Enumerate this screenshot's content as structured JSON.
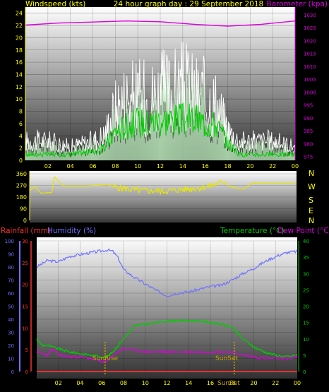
{
  "colors": {
    "background": "#000000",
    "panel_top": "#ffffff",
    "panel_bottom": "#3a3a3a",
    "axis_text": "#ffff00",
    "wind_gust": "#ffffff",
    "wind_avg": "#00cc00",
    "wind_fill": "#b8e6b8",
    "barometer": "#dd00dd",
    "direction": "#e6e600",
    "humidity": "#7070ff",
    "temperature": "#00cc00",
    "dew_point": "#dd00dd",
    "rainfall": "#ff3030",
    "sun_marker": "#c8a000"
  },
  "header": {
    "windspeed_label": "Windspeed (kts)",
    "title": "24 hour graph day : 29 September 2018",
    "barometer_label": "Barometer (kpa)"
  },
  "bottom_header": {
    "rainfall_label": "Rainfall (mm)",
    "humidity_label": "Humidity (%)",
    "temperature_label": "Temperature (°C)",
    "dewpoint_label": "Dew Point (°C)"
  },
  "compass": [
    "N",
    "W",
    "S",
    "E",
    "N"
  ],
  "sun": {
    "sunrise_label": "SunRise",
    "sunset_label": "SunSet",
    "sunrise_hour": 6.3,
    "sunset_hour": 18.2
  },
  "chart_data": [
    {
      "type": "line",
      "name": "wind_barometer",
      "x_ticks": [
        "02",
        "04",
        "06",
        "08",
        "10",
        "12",
        "14",
        "16",
        "18",
        "20",
        "22",
        "00"
      ],
      "left_ticks": [
        "0",
        "2",
        "4",
        "6",
        "8",
        "10",
        "12",
        "14",
        "16",
        "18",
        "20",
        "22",
        "24"
      ],
      "right_ticks": [
        "975",
        "980",
        "985",
        "990",
        "995",
        "1000",
        "1005",
        "1010",
        "1015",
        "1020",
        "1025",
        "1030"
      ],
      "ylim_left": [
        0,
        25
      ],
      "ylim_right": [
        973.5,
        1033
      ],
      "xlim": [
        0,
        24
      ],
      "grid": true,
      "series": [
        {
          "key": "gust",
          "values": [
            [
              0,
              3
            ],
            [
              2,
              3
            ],
            [
              4,
              2
            ],
            [
              6,
              3
            ],
            [
              7,
              4
            ],
            [
              8,
              9
            ],
            [
              9,
              11
            ],
            [
              10,
              11
            ],
            [
              11,
              11
            ],
            [
              12,
              12
            ],
            [
              13,
              12
            ],
            [
              14,
              13
            ],
            [
              15,
              12
            ],
            [
              16,
              11
            ],
            [
              17,
              10
            ],
            [
              18,
              5
            ],
            [
              19,
              3
            ],
            [
              20,
              3
            ],
            [
              22,
              3
            ],
            [
              24,
              2
            ]
          ]
        },
        {
          "key": "average",
          "values": [
            [
              0,
              1
            ],
            [
              2,
              1
            ],
            [
              4,
              1
            ],
            [
              6,
              1.5
            ],
            [
              7,
              2
            ],
            [
              8,
              5
            ],
            [
              9,
              6
            ],
            [
              10,
              6.5
            ],
            [
              11,
              6.5
            ],
            [
              12,
              7
            ],
            [
              13,
              7
            ],
            [
              14,
              7
            ],
            [
              15,
              7
            ],
            [
              16,
              6.5
            ],
            [
              17,
              6
            ],
            [
              18,
              3
            ],
            [
              19,
              1
            ],
            [
              20,
              1
            ],
            [
              22,
              1
            ],
            [
              24,
              1
            ]
          ]
        },
        {
          "key": "barometer",
          "values": [
            [
              0,
              1026
            ],
            [
              3,
              1026.8
            ],
            [
              6,
              1027.2
            ],
            [
              9,
              1027.6
            ],
            [
              12,
              1027.3
            ],
            [
              15,
              1026.3
            ],
            [
              18,
              1025.6
            ],
            [
              21,
              1026.3
            ],
            [
              24,
              1027.6
            ]
          ]
        }
      ]
    },
    {
      "type": "line",
      "name": "wind_direction",
      "y_ticks": [
        "0",
        "90",
        "180",
        "270",
        "360"
      ],
      "ylim": [
        0,
        360
      ],
      "xlim": [
        0,
        24
      ],
      "series": [
        {
          "key": "direction",
          "values": [
            [
              0,
              230
            ],
            [
              0.5,
              260
            ],
            [
              1,
              210
            ],
            [
              2,
              215
            ],
            [
              2.2,
              340
            ],
            [
              3,
              265
            ],
            [
              5,
              265
            ],
            [
              7,
              275
            ],
            [
              8,
              250
            ],
            [
              10,
              230
            ],
            [
              12,
              225
            ],
            [
              14,
              240
            ],
            [
              16,
              260
            ],
            [
              17.5,
              300
            ],
            [
              18,
              260
            ],
            [
              19.2,
              240
            ],
            [
              20,
              290
            ],
            [
              24,
              285
            ]
          ]
        }
      ]
    },
    {
      "type": "line",
      "name": "temp_humidity",
      "x_ticks": [
        "02",
        "04",
        "06",
        "08",
        "10",
        "12",
        "14",
        "16",
        "18",
        "20",
        "22",
        "00"
      ],
      "humidity_ticks": [
        "0",
        "10",
        "20",
        "30",
        "40",
        "50",
        "60",
        "70",
        "80",
        "90",
        "100"
      ],
      "rain_ticks": [
        "0",
        "5",
        "10",
        "15",
        "20",
        "25",
        "30"
      ],
      "temp_ticks": [
        "0",
        "5",
        "10",
        "15",
        "20",
        "25",
        "30",
        "35",
        "40"
      ],
      "xlim": [
        0,
        24
      ],
      "humidity_ylim": [
        0,
        100
      ],
      "temp_ylim": [
        0,
        40
      ],
      "rain_ylim": [
        0,
        30
      ],
      "grid": true,
      "series": [
        {
          "key": "humidity",
          "values": [
            [
              0,
              80
            ],
            [
              1,
              85
            ],
            [
              2,
              84
            ],
            [
              3,
              88
            ],
            [
              5,
              91
            ],
            [
              6.5,
              93
            ],
            [
              7,
              92
            ],
            [
              7.5,
              87
            ],
            [
              8,
              78
            ],
            [
              9,
              72
            ],
            [
              10,
              67
            ],
            [
              11,
              62
            ],
            [
              12,
              58
            ],
            [
              13,
              60
            ],
            [
              14,
              61
            ],
            [
              15,
              63
            ],
            [
              16,
              65
            ],
            [
              17,
              66
            ],
            [
              18,
              70
            ],
            [
              19,
              75
            ],
            [
              20,
              79
            ],
            [
              21,
              84
            ],
            [
              22,
              88
            ],
            [
              23,
              91
            ],
            [
              24,
              92
            ]
          ]
        },
        {
          "key": "temperature",
          "values": [
            [
              0,
              10
            ],
            [
              0.5,
              8
            ],
            [
              1,
              8
            ],
            [
              2,
              7
            ],
            [
              3,
              6
            ],
            [
              4,
              5.5
            ],
            [
              5,
              5
            ],
            [
              6,
              4.5
            ],
            [
              6.5,
              4.5
            ],
            [
              7,
              6
            ],
            [
              8,
              10
            ],
            [
              9,
              14
            ],
            [
              10,
              14.5
            ],
            [
              11,
              15
            ],
            [
              12,
              15.5
            ],
            [
              13,
              15.5
            ],
            [
              14,
              15.5
            ],
            [
              15,
              15.5
            ],
            [
              16,
              15
            ],
            [
              17,
              14.5
            ],
            [
              18,
              13.5
            ],
            [
              19,
              10
            ],
            [
              20,
              7.5
            ],
            [
              21,
              6
            ],
            [
              22,
              5
            ],
            [
              23,
              4.5
            ],
            [
              24,
              5
            ]
          ]
        },
        {
          "key": "dewpoint",
          "values": [
            [
              0,
              6
            ],
            [
              1,
              5
            ],
            [
              1.5,
              7
            ],
            [
              2,
              5
            ],
            [
              3,
              4.5
            ],
            [
              4,
              4.5
            ],
            [
              5,
              4
            ],
            [
              6,
              3
            ],
            [
              6.5,
              3
            ],
            [
              7,
              5
            ],
            [
              8,
              7
            ],
            [
              9,
              6.5
            ],
            [
              10,
              6
            ],
            [
              11,
              6
            ],
            [
              12,
              6
            ],
            [
              13,
              6
            ],
            [
              14,
              6
            ],
            [
              15,
              6
            ],
            [
              16,
              6
            ],
            [
              17,
              6
            ],
            [
              18,
              6
            ],
            [
              19,
              5
            ],
            [
              20,
              4.5
            ],
            [
              21,
              4
            ],
            [
              22,
              4
            ],
            [
              23,
              4
            ],
            [
              24,
              4.5
            ]
          ]
        },
        {
          "key": "rainfall",
          "values": [
            [
              0,
              0
            ],
            [
              24,
              0
            ]
          ]
        }
      ]
    }
  ]
}
